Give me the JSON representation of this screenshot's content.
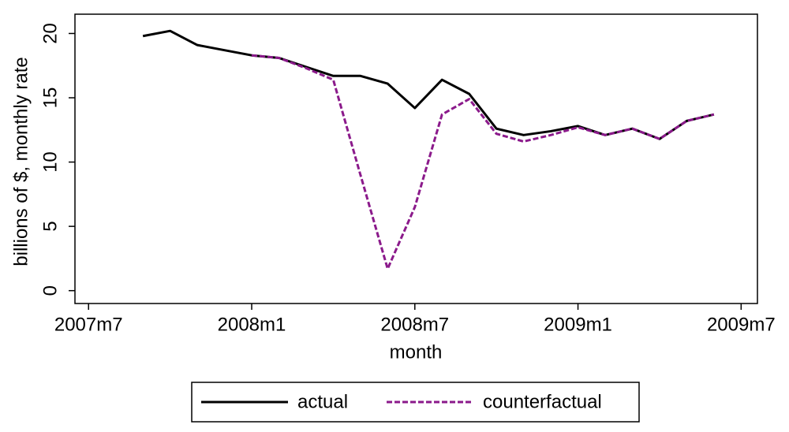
{
  "chart_data": {
    "type": "line",
    "xlabel": "month",
    "ylabel": "billions of $, monthly rate",
    "x": [
      572,
      573,
      574,
      575,
      576,
      577,
      578,
      579,
      580,
      581,
      582,
      583,
      584,
      585,
      586,
      587,
      588,
      589,
      590,
      591,
      592,
      593
    ],
    "series": [
      {
        "name": "actual",
        "color": "#000000",
        "dash": false,
        "values": [
          19.8,
          20.2,
          19.1,
          18.7,
          18.3,
          18.1,
          17.4,
          16.7,
          16.7,
          16.1,
          14.2,
          16.4,
          15.3,
          12.6,
          12.1,
          12.4,
          12.8,
          12.1,
          12.6,
          11.8,
          13.2,
          13.7
        ]
      },
      {
        "name": "counterfactual",
        "color": "#8b1a8b",
        "dash": true,
        "values": [
          null,
          null,
          null,
          null,
          18.3,
          18.1,
          17.3,
          16.4,
          9.0,
          1.7,
          6.5,
          13.7,
          14.9,
          12.2,
          11.6,
          12.1,
          12.7,
          12.1,
          12.6,
          11.8,
          13.2,
          13.7
        ]
      }
    ],
    "xlim": [
      569.5,
      594.6
    ],
    "xticks": [
      {
        "value": 570,
        "label": "2007m7"
      },
      {
        "value": 576,
        "label": "2008m1"
      },
      {
        "value": 582,
        "label": "2008m7"
      },
      {
        "value": 588,
        "label": "2009m1"
      },
      {
        "value": 594,
        "label": "2009m7"
      }
    ],
    "ylim": [
      -1,
      21.5
    ],
    "yticks": [
      0,
      5,
      10,
      15,
      20
    ],
    "legend": "bottom"
  }
}
